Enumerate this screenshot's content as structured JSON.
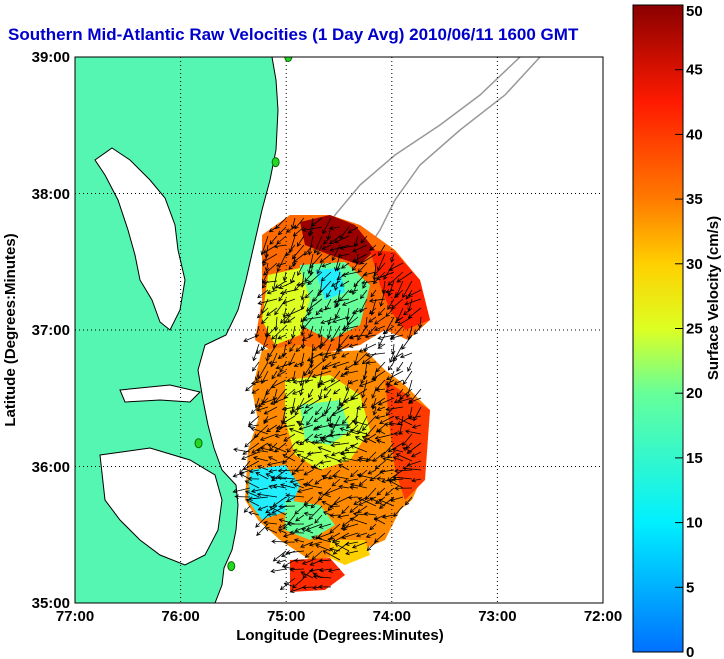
{
  "title": "Southern Mid-Atlantic Raw Velocities (1 Day Avg) 2010/06/11 1600 GMT",
  "xlabel": "Longitude (Degrees:Minutes)",
  "ylabel": "Latitude (Degrees:Minutes)",
  "x_ticks": [
    "77:00",
    "76:00",
    "75:00",
    "74:00",
    "73:00",
    "72:00"
  ],
  "y_ticks": [
    "39:00",
    "38:00",
    "37:00",
    "36:00",
    "35:00"
  ],
  "colorbar": {
    "label": "Surface Velocity (cm/s)",
    "min": 0,
    "max": 50,
    "ticks": [
      "0",
      "5",
      "10",
      "15",
      "20",
      "25",
      "30",
      "35",
      "40",
      "45",
      "50"
    ]
  },
  "colors": {
    "title": "#0000cc",
    "land": "#55f5b2",
    "coastline": "#000000",
    "bathymetry": "#999999",
    "grid": "#000000",
    "station": "#22d822"
  },
  "grid": "dotted",
  "chart_data": {
    "type": "map",
    "xlim": [
      -77,
      -72
    ],
    "ylim": [
      35,
      39
    ],
    "stations": [
      {
        "lon": -74.98,
        "lat": 39.0
      },
      {
        "lon": -75.1,
        "lat": 38.23
      },
      {
        "lon": -75.83,
        "lat": 36.17
      },
      {
        "lon": -75.52,
        "lat": 35.27
      }
    ]
  }
}
